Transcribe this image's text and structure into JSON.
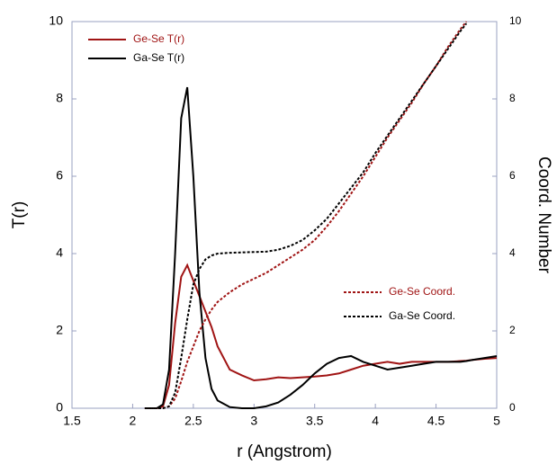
{
  "chart_data": {
    "type": "line",
    "x": [
      2.1,
      2.2,
      2.25,
      2.3,
      2.35,
      2.4,
      2.45,
      2.5,
      2.55,
      2.6,
      2.65,
      2.7,
      2.8,
      2.9,
      3.0,
      3.1,
      3.2,
      3.3,
      3.4,
      3.5,
      3.6,
      3.7,
      3.8,
      3.9,
      4.0,
      4.1,
      4.2,
      4.3,
      4.4,
      4.5,
      4.6,
      4.7,
      4.75,
      4.8,
      4.9,
      5.0
    ],
    "series": [
      {
        "name": "Ge-Se T(r)",
        "color": "#a01414",
        "style": "solid",
        "values": [
          0,
          0,
          0.05,
          0.6,
          2.2,
          3.4,
          3.7,
          3.3,
          2.9,
          2.5,
          2.1,
          1.6,
          1.0,
          0.85,
          0.72,
          0.75,
          0.8,
          0.78,
          0.8,
          0.82,
          0.85,
          0.9,
          1.0,
          1.1,
          1.15,
          1.2,
          1.15,
          1.2,
          1.2,
          1.2,
          1.2,
          1.22,
          1.23,
          1.25,
          1.28,
          1.3
        ]
      },
      {
        "name": "Ga-Se T(r)",
        "color": "#000000",
        "style": "solid",
        "values": [
          0,
          0,
          0.1,
          1.0,
          4.0,
          7.5,
          8.3,
          6.0,
          3.0,
          1.3,
          0.5,
          0.2,
          0.03,
          0,
          0,
          0.05,
          0.15,
          0.35,
          0.6,
          0.9,
          1.15,
          1.3,
          1.35,
          1.2,
          1.1,
          1.0,
          1.05,
          1.1,
          1.15,
          1.2,
          1.2,
          1.2,
          1.22,
          1.25,
          1.3,
          1.35
        ]
      },
      {
        "name": "Ge-Se Coord.",
        "color": "#a01414",
        "style": "dashed",
        "axis": "y2",
        "values": [
          0,
          0,
          0,
          0.05,
          0.25,
          0.7,
          1.2,
          1.6,
          2.0,
          2.3,
          2.55,
          2.75,
          3.0,
          3.2,
          3.35,
          3.5,
          3.7,
          3.9,
          4.1,
          4.35,
          4.7,
          5.1,
          5.55,
          6.0,
          6.5,
          7.0,
          7.45,
          7.9,
          8.4,
          8.85,
          9.35,
          9.8,
          10,
          null,
          null,
          null
        ]
      },
      {
        "name": "Ga-Se Coord.",
        "color": "#000000",
        "style": "dashed",
        "axis": "y2",
        "values": [
          0,
          0,
          0,
          0.05,
          0.4,
          1.3,
          2.3,
          3.2,
          3.6,
          3.85,
          3.95,
          4.0,
          4.02,
          4.03,
          4.04,
          4.05,
          4.1,
          4.2,
          4.35,
          4.6,
          4.9,
          5.3,
          5.7,
          6.1,
          6.6,
          7.05,
          7.5,
          7.95,
          8.4,
          8.85,
          9.3,
          9.75,
          9.95,
          null,
          null,
          null
        ]
      }
    ],
    "x_label": "r (Angstrom)",
    "y_label": "T(r)",
    "y2_label": "Coord. Number",
    "xlim": [
      1.5,
      5
    ],
    "xticks": [
      1.5,
      2,
      2.5,
      3,
      3.5,
      4,
      4.5,
      5
    ],
    "ylim": [
      0,
      10
    ],
    "yticks": [
      0,
      2,
      4,
      6,
      8,
      10
    ],
    "y2lim": [
      0,
      10
    ],
    "y2ticks": [
      0,
      2,
      4,
      6,
      8,
      10
    ]
  }
}
